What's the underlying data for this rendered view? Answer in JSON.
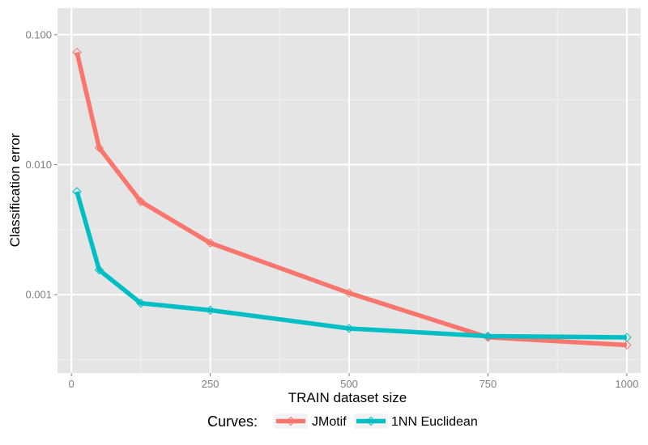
{
  "chart_data": {
    "type": "line",
    "title": "",
    "xlabel": "TRAIN dataset size",
    "ylabel": "Classification error",
    "y_scale": "log10",
    "xlim": [
      -25,
      1025
    ],
    "ylim": [
      0.00025,
      0.16
    ],
    "x_ticks": [
      0,
      250,
      500,
      750,
      1000
    ],
    "x_tick_labels": [
      "0",
      "250",
      "500",
      "750",
      "1000"
    ],
    "y_ticks": [
      0.001,
      0.01,
      0.1
    ],
    "y_tick_labels": [
      "0.001",
      "0.010",
      "0.100"
    ],
    "grid": true,
    "legend": {
      "title": "Curves:",
      "position": "bottom"
    },
    "series": [
      {
        "name": "JMotif",
        "color": "#F8766D",
        "x": [
          10,
          50,
          125,
          250,
          500,
          750,
          1000
        ],
        "y": [
          0.073,
          0.0135,
          0.0052,
          0.0025,
          0.00103,
          0.00047,
          0.00041
        ]
      },
      {
        "name": "1NN Euclidean",
        "color": "#00BFC4",
        "x": [
          10,
          50,
          125,
          250,
          500,
          750,
          1000
        ],
        "y": [
          0.0062,
          0.00155,
          0.00086,
          0.00076,
          0.00055,
          0.00048,
          0.00047
        ]
      }
    ]
  },
  "colors": {
    "panel_background": "#E5E5E5",
    "major_grid": "#FFFFFF",
    "minor_grid": "#F2F2F2"
  }
}
